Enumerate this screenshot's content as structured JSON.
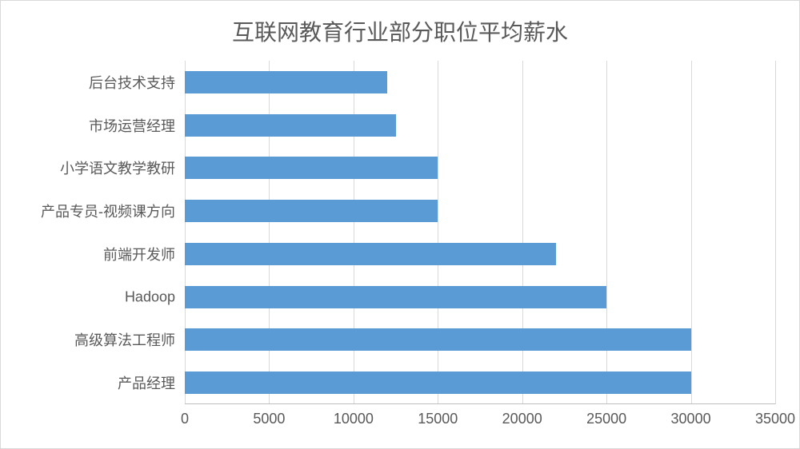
{
  "chart": {
    "type": "bar-horizontal",
    "title": "互联网教育行业部分职位平均薪水",
    "title_fontsize": 28,
    "title_color": "#595959",
    "label_fontsize": 18,
    "label_color": "#595959",
    "background_color": "#ffffff",
    "border_color": "#d9d9d9",
    "grid_color": "#d9d9d9",
    "axis_line_color": "#bfbfbf",
    "bar_color": "#5b9bd5",
    "bar_thickness_ratio": 0.52,
    "xlim": [
      0,
      35000
    ],
    "xtick_step": 5000,
    "xticks": [
      0,
      5000,
      10000,
      15000,
      20000,
      25000,
      30000,
      35000
    ],
    "categories": [
      "后台技术支持",
      "市场运营经理",
      "小学语文教学教研",
      "产品专员-视频课方向",
      "前端开发师",
      "Hadoop",
      "高级算法工程师",
      "产品经理"
    ],
    "values": [
      12000,
      12500,
      15000,
      15000,
      22000,
      25000,
      30000,
      30000
    ]
  }
}
